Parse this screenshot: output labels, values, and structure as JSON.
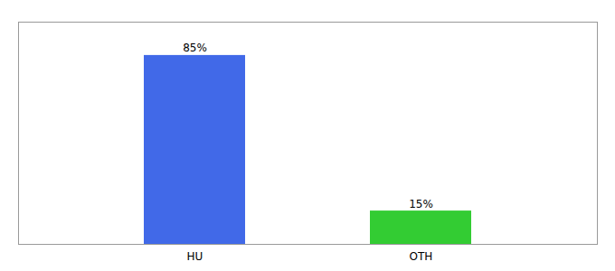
{
  "chart_data": {
    "type": "bar",
    "categories": [
      "HU",
      "OTH"
    ],
    "values": [
      85,
      15
    ],
    "colors": [
      "#4169e8",
      "#33cc33"
    ],
    "value_labels": [
      "85%",
      "15%"
    ],
    "data_labels": true,
    "ylim": [
      0,
      100
    ],
    "grid": false,
    "tick_labels": "x"
  }
}
